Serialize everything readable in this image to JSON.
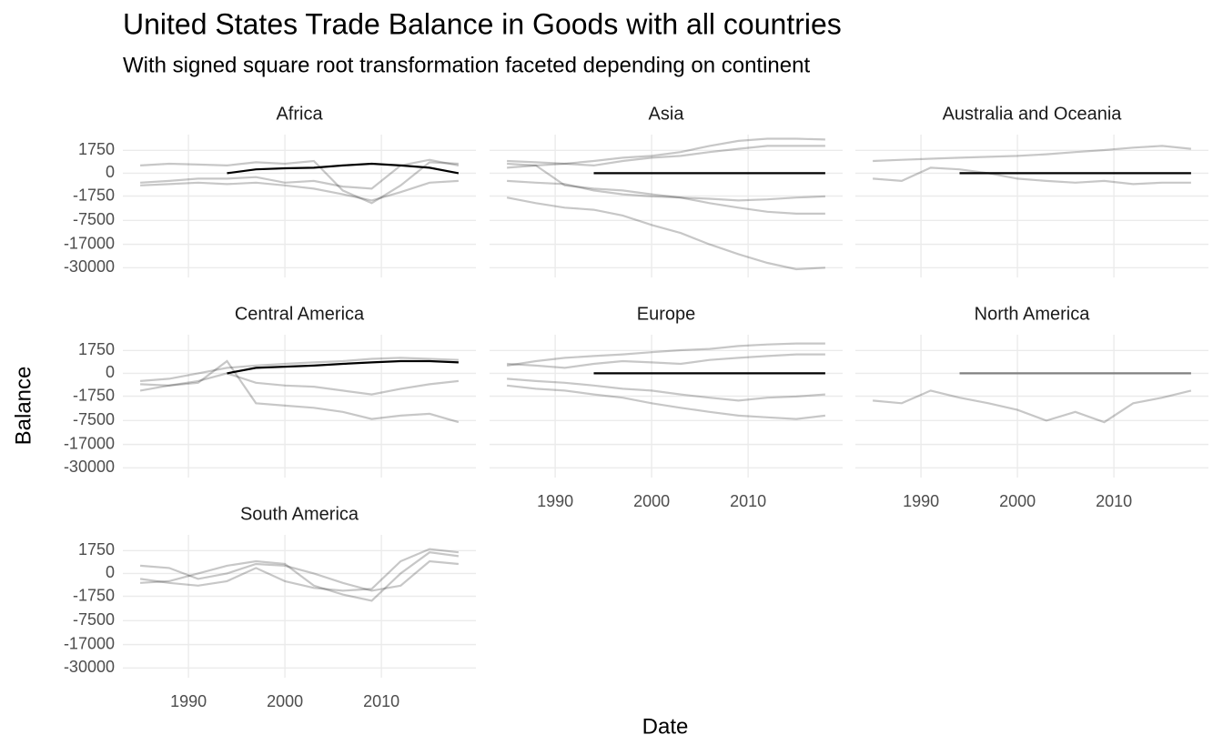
{
  "title": "United States Trade Balance in Goods with all countries",
  "subtitle": "With signed square root transformation faceted depending on continent",
  "x_label": "Date",
  "y_label": "Balance",
  "chart_data": [
    {
      "type": "line",
      "title": "Africa",
      "y_scale": "signed_sqrt",
      "grid": true,
      "x": [
        1985,
        1988,
        1991,
        1994,
        1997,
        2000,
        2003,
        2006,
        2009,
        2012,
        2015,
        2018
      ],
      "xlim": [
        1983.2,
        2019.8
      ],
      "xticks": [
        1990,
        2000,
        2010
      ],
      "ylim": [
        -36500,
        5000
      ],
      "yticks": [
        1750,
        0,
        -1750,
        -7500,
        -17000,
        -30000
      ],
      "series": [
        {
          "color": "#00000038",
          "values": [
            -500,
            -400,
            -300,
            -400,
            -300,
            -500,
            -800,
            -1500,
            -2500,
            -1200,
            -300,
            -200
          ]
        },
        {
          "color": "#00000038",
          "values": [
            200,
            300,
            250,
            200,
            400,
            300,
            500,
            -1000,
            -3000,
            -500,
            400,
            300
          ]
        },
        {
          "color": "#00000038",
          "values": [
            -300,
            -200,
            -100,
            -100,
            -50,
            -300,
            -200,
            -600,
            -800,
            200,
            600,
            200
          ]
        },
        {
          "color": "#000000",
          "values": [
            null,
            null,
            null,
            0,
            50,
            80,
            100,
            200,
            300,
            200,
            100,
            0
          ]
        }
      ]
    },
    {
      "type": "line",
      "title": "Asia",
      "y_scale": "signed_sqrt",
      "grid": true,
      "x": [
        1985,
        1988,
        1991,
        1994,
        1997,
        2000,
        2003,
        2006,
        2009,
        2012,
        2015,
        2018
      ],
      "xlim": [
        1983.2,
        2019.8
      ],
      "xticks": [
        1990,
        2000,
        2010
      ],
      "ylim": [
        -36500,
        5000
      ],
      "yticks": [
        1750,
        0,
        -1750,
        -7500,
        -17000,
        -30000
      ],
      "series": [
        {
          "color": "#00000038",
          "values": [
            -2000,
            -3000,
            -4000,
            -4500,
            -6000,
            -9000,
            -12000,
            -17000,
            -22000,
            -27000,
            -31000,
            -30000
          ]
        },
        {
          "color": "#00000038",
          "values": [
            300,
            200,
            -500,
            -800,
            -1000,
            -1500,
            -2000,
            -3000,
            -4000,
            -5000,
            -5500,
            -5500
          ]
        },
        {
          "color": "#00000038",
          "values": [
            100,
            200,
            300,
            500,
            800,
            1000,
            1500,
            2500,
            3500,
            4000,
            4000,
            3800
          ]
        },
        {
          "color": "#00000038",
          "values": [
            -200,
            -300,
            -400,
            -1000,
            -1500,
            -1800,
            -2000,
            -2200,
            -2500,
            -2300,
            -2000,
            -1800
          ]
        },
        {
          "color": "#00000038",
          "values": [
            500,
            400,
            300,
            200,
            500,
            800,
            1000,
            1500,
            2000,
            2500,
            2500,
            2500
          ]
        },
        {
          "color": "#000000",
          "values": [
            null,
            null,
            null,
            0,
            0,
            0,
            0,
            0,
            0,
            0,
            0,
            0
          ]
        }
      ]
    },
    {
      "type": "line",
      "title": "Australia and Oceania",
      "y_scale": "signed_sqrt",
      "grid": true,
      "x": [
        1985,
        1988,
        1991,
        1994,
        1997,
        2000,
        2003,
        2006,
        2009,
        2012,
        2015,
        2018
      ],
      "xlim": [
        1983.2,
        2019.8
      ],
      "xticks": [
        1990,
        2000,
        2010
      ],
      "ylim": [
        -36500,
        5000
      ],
      "yticks": [
        1750,
        0,
        -1750,
        -7500,
        -17000,
        -30000
      ],
      "series": [
        {
          "color": "#00000038",
          "values": [
            500,
            600,
            700,
            800,
            900,
            1000,
            1200,
            1500,
            1800,
            2200,
            2500,
            2000
          ]
        },
        {
          "color": "#00000038",
          "values": [
            -100,
            -200,
            100,
            50,
            0,
            -100,
            -200,
            -300,
            -200,
            -400,
            -300,
            -300
          ]
        },
        {
          "color": "#000000",
          "values": [
            null,
            null,
            null,
            0,
            0,
            0,
            0,
            0,
            0,
            0,
            0,
            0
          ]
        }
      ]
    },
    {
      "type": "line",
      "title": "Central America",
      "y_scale": "signed_sqrt",
      "grid": true,
      "x": [
        1985,
        1988,
        1991,
        1994,
        1997,
        2000,
        2003,
        2006,
        2009,
        2012,
        2015,
        2018
      ],
      "xlim": [
        1983.2,
        2019.8
      ],
      "xticks": [
        1990,
        2000,
        2010
      ],
      "ylim": [
        -36500,
        5000
      ],
      "yticks": [
        1750,
        0,
        -1750,
        -7500,
        -17000,
        -30000
      ],
      "series": [
        {
          "color": "#00000038",
          "values": [
            -1000,
            -500,
            -300,
            500,
            -3000,
            -3500,
            -4000,
            -5000,
            -7000,
            -6000,
            -5500,
            -8000
          ]
        },
        {
          "color": "#00000038",
          "values": [
            -200,
            -100,
            0,
            100,
            200,
            300,
            400,
            500,
            700,
            800,
            700,
            600
          ]
        },
        {
          "color": "#00000038",
          "values": [
            -400,
            -500,
            -200,
            0,
            -300,
            -500,
            -600,
            -1000,
            -1500,
            -800,
            -400,
            -200
          ]
        },
        {
          "color": "#000000",
          "values": [
            null,
            null,
            null,
            0,
            100,
            150,
            200,
            300,
            400,
            500,
            500,
            400
          ]
        }
      ]
    },
    {
      "type": "line",
      "title": "Europe",
      "y_scale": "signed_sqrt",
      "grid": true,
      "x": [
        1985,
        1988,
        1991,
        1994,
        1997,
        2000,
        2003,
        2006,
        2009,
        2012,
        2015,
        2018
      ],
      "xlim": [
        1983.2,
        2019.8
      ],
      "xticks": [
        1990,
        2000,
        2010
      ],
      "ylim": [
        -36500,
        5000
      ],
      "yticks": [
        1750,
        0,
        -1750,
        -7500,
        -17000,
        -30000
      ],
      "series": [
        {
          "color": "#00000038",
          "values": [
            200,
            500,
            800,
            1000,
            1200,
            1500,
            1800,
            2000,
            2500,
            2800,
            3000,
            3000
          ]
        },
        {
          "color": "#00000038",
          "values": [
            -500,
            -800,
            -1000,
            -1500,
            -2000,
            -3000,
            -4000,
            -5000,
            -6000,
            -6500,
            -7000,
            -6000
          ]
        },
        {
          "color": "#00000038",
          "values": [
            -100,
            -200,
            -300,
            -500,
            -800,
            -1000,
            -1500,
            -2000,
            -2500,
            -2000,
            -1800,
            -1500
          ]
        },
        {
          "color": "#00000038",
          "values": [
            300,
            200,
            100,
            300,
            500,
            400,
            300,
            600,
            800,
            1000,
            1200,
            1200
          ]
        },
        {
          "color": "#000000",
          "values": [
            null,
            null,
            null,
            0,
            0,
            0,
            0,
            0,
            0,
            0,
            0,
            0
          ]
        }
      ]
    },
    {
      "type": "line",
      "title": "North America",
      "y_scale": "signed_sqrt",
      "grid": true,
      "x": [
        1985,
        1988,
        1991,
        1994,
        1997,
        2000,
        2003,
        2006,
        2009,
        2012,
        2015,
        2018
      ],
      "xlim": [
        1983.2,
        2019.8
      ],
      "xticks": [
        1990,
        2000,
        2010
      ],
      "ylim": [
        -36500,
        5000
      ],
      "yticks": [
        1750,
        0,
        -1750,
        -7500,
        -17000,
        -30000
      ],
      "series": [
        {
          "color": "#00000038",
          "values": [
            -2500,
            -3000,
            -1000,
            -2000,
            -3000,
            -4500,
            -7500,
            -5000,
            -8000,
            -3000,
            -2000,
            -1000
          ]
        },
        {
          "color": "#808080",
          "values": [
            null,
            null,
            null,
            0,
            0,
            0,
            0,
            0,
            0,
            0,
            0,
            0
          ]
        }
      ]
    },
    {
      "type": "line",
      "title": "South America",
      "y_scale": "signed_sqrt",
      "grid": true,
      "x": [
        1985,
        1988,
        1991,
        1994,
        1997,
        2000,
        2003,
        2006,
        2009,
        2012,
        2015,
        2018
      ],
      "xlim": [
        1983.2,
        2019.8
      ],
      "xticks": [
        1990,
        2000,
        2010
      ],
      "ylim": [
        -36500,
        5000
      ],
      "yticks": [
        1750,
        0,
        -1750,
        -7500,
        -17000,
        -30000
      ],
      "series": [
        {
          "color": "#00000038",
          "values": [
            -300,
            -200,
            0,
            200,
            500,
            300,
            -500,
            -1500,
            -2500,
            0,
            1500,
            1000
          ]
        },
        {
          "color": "#00000038",
          "values": [
            -100,
            -300,
            -500,
            -200,
            100,
            -200,
            -700,
            -1000,
            -800,
            500,
            2000,
            1500
          ]
        },
        {
          "color": "#00000038",
          "values": [
            200,
            100,
            -100,
            0,
            300,
            200,
            0,
            -300,
            -1000,
            -500,
            500,
            300
          ]
        }
      ]
    }
  ]
}
